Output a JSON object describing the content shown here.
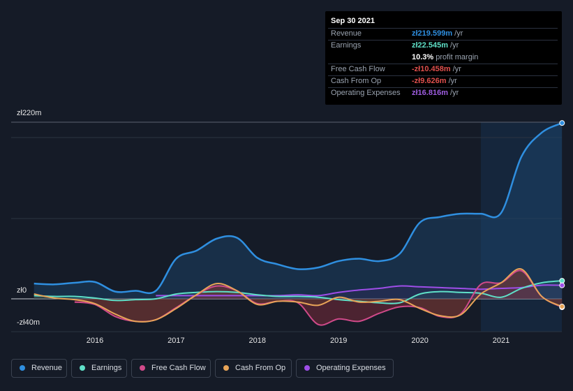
{
  "tooltip": {
    "date": "Sep 30 2021",
    "rows": [
      {
        "label": "Revenue",
        "value": "zł219.599m",
        "unit": " /yr",
        "color": "#2f8fe0"
      },
      {
        "label": "Earnings",
        "value": "zł22.545m",
        "unit": " /yr",
        "color": "#5fe0c8"
      },
      {
        "label": "",
        "value": "10.3%",
        "unit": " profit margin",
        "color": "#ffffff"
      },
      {
        "label": "Free Cash Flow",
        "value": "-zł10.458m",
        "unit": " /yr",
        "color": "#e0504d"
      },
      {
        "label": "Cash From Op",
        "value": "-zł9.626m",
        "unit": " /yr",
        "color": "#e0504d"
      },
      {
        "label": "Operating Expenses",
        "value": "zł16.816m",
        "unit": " /yr",
        "color": "#9e5de0"
      }
    ]
  },
  "legend": [
    {
      "label": "Revenue",
      "color": "#2f8fe0"
    },
    {
      "label": "Earnings",
      "color": "#5fe0c8"
    },
    {
      "label": "Free Cash Flow",
      "color": "#d04a8a"
    },
    {
      "label": "Cash From Op",
      "color": "#e8a458"
    },
    {
      "label": "Operating Expenses",
      "color": "#9e4ee8"
    }
  ],
  "chart_data": {
    "type": "line",
    "ylim": [
      -40,
      220
    ],
    "y_tick_labels": [
      "zł220m",
      "zł0",
      "-zł40m"
    ],
    "x_ticks": [
      2016,
      2017,
      2018,
      2019,
      2020,
      2021
    ],
    "highlight_start": 2020.75,
    "series": [
      {
        "name": "Revenue",
        "color": "#2f8fe0",
        "x": [
          2015.25,
          2015.5,
          2015.75,
          2016.0,
          2016.25,
          2016.5,
          2016.75,
          2017.0,
          2017.25,
          2017.5,
          2017.75,
          2018.0,
          2018.25,
          2018.5,
          2018.75,
          2019.0,
          2019.25,
          2019.5,
          2019.75,
          2020.0,
          2020.25,
          2020.5,
          2020.75,
          2021.0,
          2021.25,
          2021.5,
          2021.75
        ],
        "y": [
          19,
          18,
          20,
          21,
          9,
          10,
          10,
          50,
          60,
          75,
          76,
          51,
          43,
          37,
          39,
          47,
          50,
          47,
          56,
          95,
          102,
          106,
          106,
          107,
          177,
          207,
          219
        ]
      },
      {
        "name": "Earnings",
        "color": "#5fe0c8",
        "x": [
          2015.25,
          2015.5,
          2015.75,
          2016.0,
          2016.25,
          2016.5,
          2016.75,
          2017.0,
          2017.25,
          2017.5,
          2017.75,
          2018.0,
          2018.25,
          2018.5,
          2018.75,
          2019.0,
          2019.25,
          2019.5,
          2019.75,
          2020.0,
          2020.25,
          2020.5,
          2020.75,
          2021.0,
          2021.25,
          2021.5,
          2021.75
        ],
        "y": [
          4,
          3,
          3,
          1,
          -2,
          -1,
          0,
          6,
          8,
          9,
          8,
          5,
          3,
          3,
          2,
          -1,
          -3,
          -5,
          -5,
          6,
          9,
          8,
          7,
          2,
          13,
          20,
          22.5
        ]
      },
      {
        "name": "Free Cash Flow",
        "color": "#d04a8a",
        "x": [
          2015.75,
          2016.0,
          2016.25,
          2016.5,
          2016.75,
          2017.0,
          2017.25,
          2017.5,
          2017.75,
          2018.0,
          2018.25,
          2018.5,
          2018.75,
          2019.0,
          2019.25,
          2019.5,
          2019.75,
          2020.0,
          2020.25,
          2020.5,
          2020.75,
          2021.0,
          2021.25,
          2021.5,
          2021.75
        ],
        "y": [
          -4,
          -7,
          -22,
          -28,
          -26,
          -11,
          5,
          16,
          10,
          -6,
          -3,
          -5,
          -32,
          -25,
          -28,
          -18,
          -10,
          -11,
          -22,
          -19,
          18,
          20,
          35,
          3,
          -10.5
        ]
      },
      {
        "name": "Cash From Op",
        "color": "#e8a458",
        "x": [
          2015.25,
          2015.5,
          2015.75,
          2016.0,
          2016.25,
          2016.5,
          2016.75,
          2017.0,
          2017.25,
          2017.5,
          2017.75,
          2018.0,
          2018.25,
          2018.5,
          2018.75,
          2019.0,
          2019.25,
          2019.5,
          2019.75,
          2020.0,
          2020.25,
          2020.5,
          2020.75,
          2021.0,
          2021.25,
          2021.5,
          2021.75
        ],
        "y": [
          6,
          1,
          -1,
          -6,
          -19,
          -28,
          -26,
          -12,
          5,
          19,
          10,
          -7,
          -3,
          -4,
          -8,
          2,
          -4,
          -3,
          -1,
          -12,
          -21,
          -20,
          6,
          20,
          37,
          3,
          -9.6
        ]
      },
      {
        "name": "Operating Expenses",
        "color": "#9e4ee8",
        "x": [
          2016.75,
          2017.0,
          2017.25,
          2017.5,
          2017.75,
          2018.0,
          2018.25,
          2018.5,
          2018.75,
          2019.0,
          2019.25,
          2019.5,
          2019.75,
          2020.0,
          2020.25,
          2020.5,
          2020.75,
          2021.0,
          2021.25,
          2021.5,
          2021.75
        ],
        "y": [
          4,
          4,
          4,
          4,
          4,
          4,
          4,
          5,
          4,
          8,
          11,
          13,
          16,
          15,
          14,
          13,
          12,
          13,
          14,
          17,
          16.8
        ]
      }
    ]
  }
}
